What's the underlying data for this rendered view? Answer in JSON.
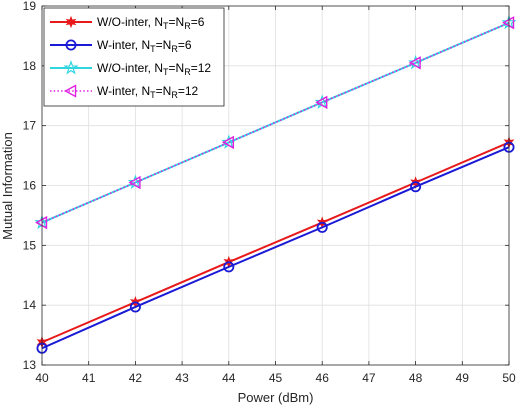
{
  "chart_data": {
    "type": "line",
    "xlabel": "Power (dBm)",
    "ylabel": "Mutual Information",
    "xlim": [
      40,
      50
    ],
    "ylim": [
      13,
      19
    ],
    "x_ticks": [
      40,
      41,
      42,
      43,
      44,
      45,
      46,
      47,
      48,
      49,
      50
    ],
    "y_ticks": [
      13,
      14,
      15,
      16,
      17,
      18,
      19
    ],
    "grid": true,
    "legend_position": "top-left",
    "x": [
      40,
      42,
      44,
      46,
      48,
      50
    ],
    "series": [
      {
        "name": "W/O-inter, NT=NR=6",
        "label_parts": {
          "prefix": "W/O-inter, N",
          "sub1": "T",
          "mid": "=N",
          "sub2": "R",
          "suffix": "=6"
        },
        "values": [
          13.38,
          14.05,
          14.72,
          15.38,
          16.05,
          16.72
        ],
        "color": "#e8191b",
        "line_style": "solid",
        "marker": "star6"
      },
      {
        "name": "W-inter, NT=NR=6",
        "label_parts": {
          "prefix": "W-inter, N",
          "sub1": "T",
          "mid": "=N",
          "sub2": "R",
          "suffix": "=6"
        },
        "values": [
          13.28,
          13.97,
          14.64,
          15.3,
          15.98,
          16.64
        ],
        "color": "#1a1ad6",
        "line_style": "solid",
        "marker": "circle"
      },
      {
        "name": "W/O-inter, NT=NR=12",
        "label_parts": {
          "prefix": "W/O-inter, N",
          "sub1": "T",
          "mid": "=N",
          "sub2": "R",
          "suffix": "=12"
        },
        "values": [
          15.38,
          16.05,
          16.72,
          17.39,
          18.05,
          18.72
        ],
        "color": "#30d5e0",
        "line_style": "solid",
        "marker": "pentagram"
      },
      {
        "name": "W-inter, NT=NR=12",
        "label_parts": {
          "prefix": "W-inter, N",
          "sub1": "T",
          "mid": "=N",
          "sub2": "R",
          "suffix": "=12"
        },
        "values": [
          15.38,
          16.05,
          16.72,
          17.39,
          18.05,
          18.72
        ],
        "color": "#e020e0",
        "line_style": "dotted",
        "marker": "triangle-left"
      }
    ]
  }
}
